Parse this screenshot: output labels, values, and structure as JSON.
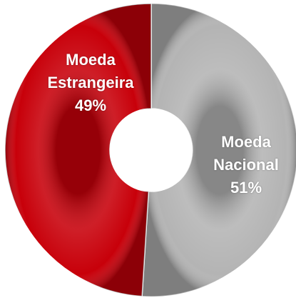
{
  "chart_data": {
    "type": "pie",
    "categories": [
      "Moeda Nacional",
      "Moeda Estrangeira"
    ],
    "values": [
      51,
      49
    ],
    "value_labels": [
      "51%",
      "49%"
    ],
    "colors": [
      "#b4b4b4",
      "#c8000a"
    ]
  }
}
